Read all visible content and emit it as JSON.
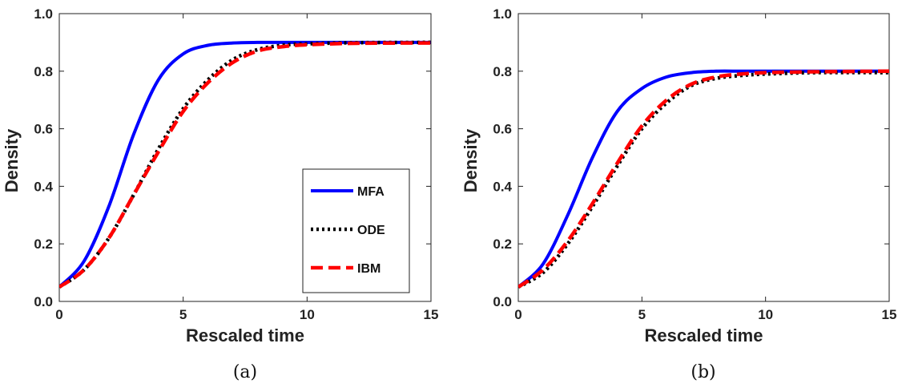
{
  "colors": {
    "MFA": "#0000ff",
    "ODE": "#000000",
    "IBM": "#ff0000"
  },
  "chart_data": [
    {
      "type": "line",
      "caption": "(a)",
      "xlabel": "Rescaled time",
      "ylabel": "Density",
      "xlim": [
        0,
        15
      ],
      "ylim": [
        0,
        1
      ],
      "xticks": [
        "0",
        "5",
        "10",
        "15"
      ],
      "yticks": [
        "0.0",
        "0.2",
        "0.4",
        "0.6",
        "0.8",
        "1.0"
      ],
      "grid": false,
      "legend": {
        "position": "lower-right",
        "entries": [
          "MFA",
          "ODE",
          "IBM"
        ]
      },
      "x": [
        0,
        1,
        2,
        3,
        4,
        5,
        6,
        7,
        8,
        9,
        10,
        12,
        15
      ],
      "series": [
        {
          "name": "MFA",
          "style": "solid",
          "values": [
            0.05,
            0.14,
            0.33,
            0.58,
            0.77,
            0.86,
            0.89,
            0.898,
            0.9,
            0.9,
            0.9,
            0.9,
            0.9
          ]
        },
        {
          "name": "ODE",
          "style": "dotted",
          "values": [
            0.05,
            0.11,
            0.22,
            0.37,
            0.53,
            0.67,
            0.77,
            0.84,
            0.875,
            0.89,
            0.895,
            0.899,
            0.9
          ]
        },
        {
          "name": "IBM",
          "style": "dashed",
          "values": [
            0.05,
            0.11,
            0.22,
            0.37,
            0.52,
            0.66,
            0.76,
            0.83,
            0.87,
            0.885,
            0.892,
            0.897,
            0.898
          ]
        }
      ]
    },
    {
      "type": "line",
      "caption": "(b)",
      "xlabel": "Rescaled time",
      "ylabel": "Density",
      "xlim": [
        0,
        15
      ],
      "ylim": [
        0,
        1
      ],
      "xticks": [
        "0",
        "5",
        "10",
        "15"
      ],
      "yticks": [
        "0.0",
        "0.2",
        "0.4",
        "0.6",
        "0.8",
        "1.0"
      ],
      "grid": false,
      "x": [
        0,
        1,
        2,
        3,
        4,
        5,
        6,
        7,
        8,
        9,
        10,
        12,
        15
      ],
      "series": [
        {
          "name": "MFA",
          "style": "solid",
          "values": [
            0.05,
            0.13,
            0.3,
            0.5,
            0.66,
            0.74,
            0.78,
            0.795,
            0.8,
            0.8,
            0.8,
            0.8,
            0.8
          ]
        },
        {
          "name": "ODE",
          "style": "dotted",
          "values": [
            0.05,
            0.1,
            0.2,
            0.33,
            0.47,
            0.6,
            0.69,
            0.75,
            0.775,
            0.785,
            0.79,
            0.795,
            0.795
          ]
        },
        {
          "name": "IBM",
          "style": "dashed",
          "values": [
            0.05,
            0.11,
            0.21,
            0.34,
            0.48,
            0.61,
            0.7,
            0.755,
            0.78,
            0.79,
            0.795,
            0.798,
            0.8
          ]
        }
      ]
    }
  ]
}
